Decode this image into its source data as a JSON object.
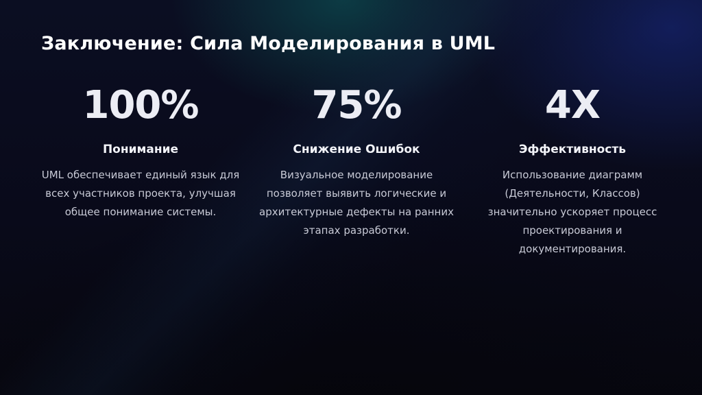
{
  "slide": {
    "title": "Заключение: Сила Моделирования в UML",
    "stats": [
      {
        "value": "100%",
        "label": "Понимание",
        "description": "UML обеспечивает единый язык для всех участников проекта, улучшая общее понимание системы."
      },
      {
        "value": "75%",
        "label": "Снижение Ошибок",
        "description": "Визуальное моделирование позволяет выявить логические и архитектурные дефекты на ранних этапах разработки."
      },
      {
        "value": "4X",
        "label": "Эффективность",
        "description": "Использование диаграмм (Деятельности, Классов) значительно ускоряет процесс проектирования и документирования."
      }
    ]
  },
  "colors": {
    "background": "#0a0b1c",
    "teal_glow": "#0e6060",
    "blue_glow": "#162678",
    "heading_text": "#ffffff",
    "body_text": "#c8cad6"
  }
}
